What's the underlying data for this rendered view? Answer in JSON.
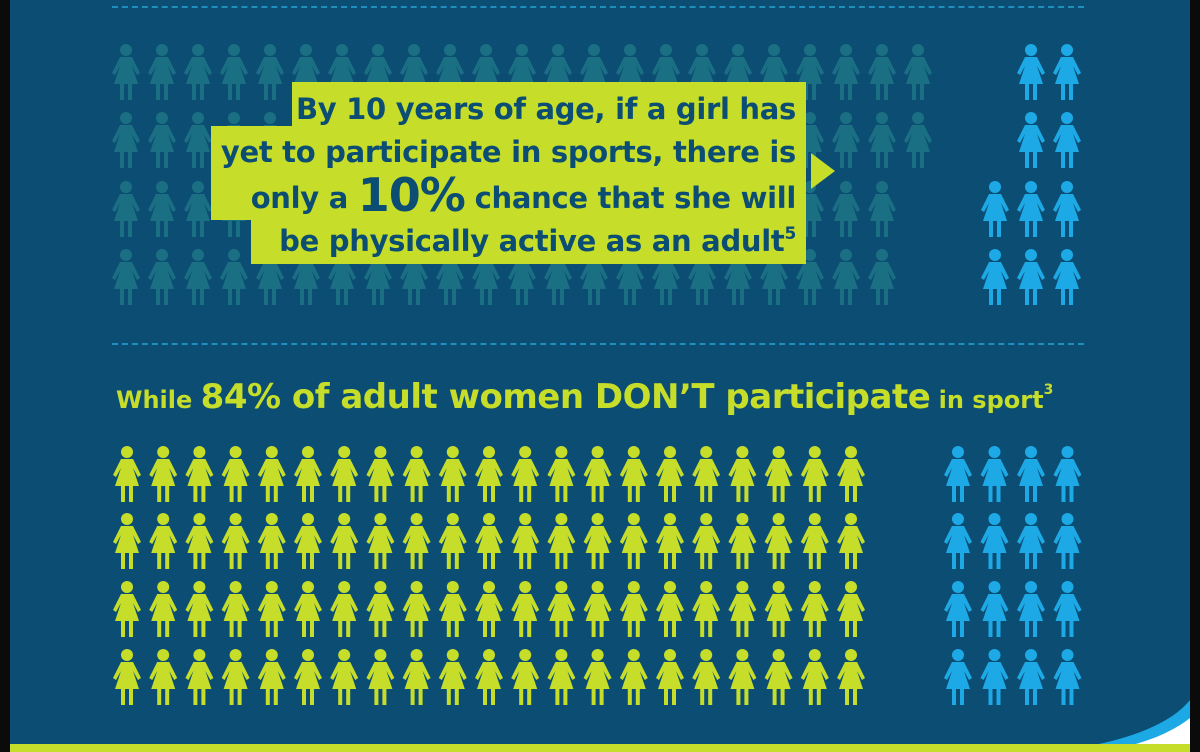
{
  "callout": {
    "by": "By ",
    "years": "10 years",
    "line1_rest": " of age, if a girl has",
    "line2": "yet to participate in sports, there is",
    "line3_pre": "only a ",
    "percent": "10%",
    "line3_post": " chance that she will",
    "line4": "be physically active as an adult",
    "ref": "5"
  },
  "stat": {
    "pre": "While ",
    "highlight": "84% of adult women DON’T participate",
    "post": " in sport",
    "ref": "3"
  },
  "top_figures": {
    "faded_per_row": [
      23,
      23,
      22,
      22
    ],
    "active_per_row": [
      2,
      2,
      3,
      3
    ]
  },
  "bottom_figures": {
    "non_participating": 84,
    "participating": 16
  },
  "colors": {
    "background": "#0b4d73",
    "accent_yellow": "#c6de2a",
    "figure_blue": "#1ca9e6",
    "faded_figure": "#1b6f83",
    "dash": "#1f8fbd"
  }
}
